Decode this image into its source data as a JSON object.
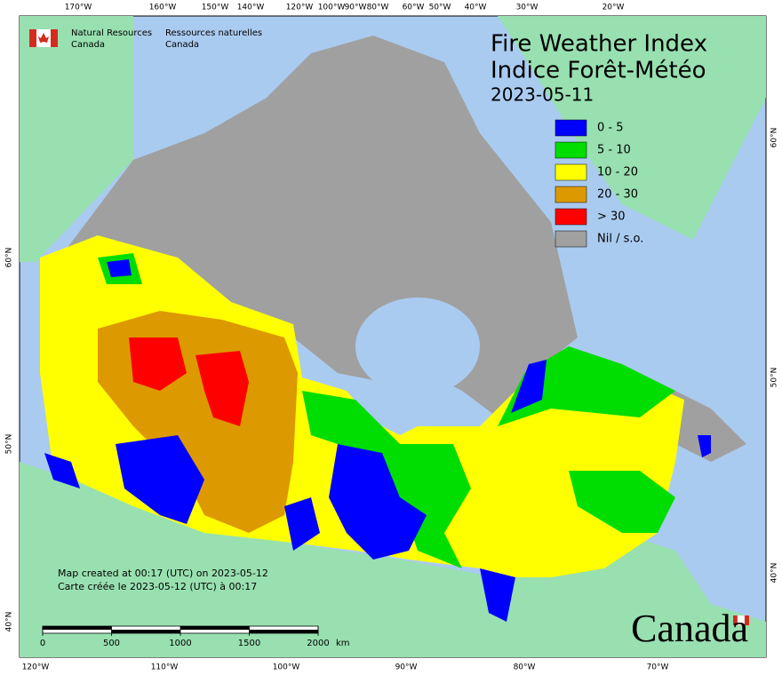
{
  "agency": {
    "en": [
      "Natural Resources",
      "Canada"
    ],
    "fr": [
      "Ressources naturelles",
      "Canada"
    ]
  },
  "title": [
    "Fire Weather Index",
    "Indice Forêt-Météo"
  ],
  "date": "2023-05-11",
  "legend": [
    {
      "label": "0 - 5",
      "color": "#0000ff"
    },
    {
      "label": "5 - 10",
      "color": "#00dd00"
    },
    {
      "label": "10 - 20",
      "color": "#ffff00"
    },
    {
      "label": "20 - 30",
      "color": "#dd9900"
    },
    {
      "label": "> 30",
      "color": "#ff0000"
    },
    {
      "label": "Nil / s.o.",
      "color": "#a0a0a0"
    }
  ],
  "graticule": {
    "top": [
      "170°W",
      "160°W",
      "150°W",
      "140°W",
      "120°W",
      "100°W",
      "90°W",
      "80°W",
      "60°W",
      "50°W",
      "40°W",
      "30°W",
      "20°W"
    ],
    "bottom": [
      "120°W",
      "110°W",
      "100°W",
      "90°W",
      "80°W",
      "70°W"
    ],
    "left": [
      "60°N",
      "50°N",
      "40°N"
    ],
    "right": [
      "60°N",
      "50°N",
      "40°N"
    ]
  },
  "notes": [
    "Map created at 00:17 (UTC) on 2023-05-12",
    "Carte créée le 2023-05-12 (UTC) à 00:17"
  ],
  "scale_bar": {
    "ticks": [
      0,
      500,
      1000,
      1500,
      2000
    ],
    "unit": "km"
  },
  "wordmark": "Canada"
}
